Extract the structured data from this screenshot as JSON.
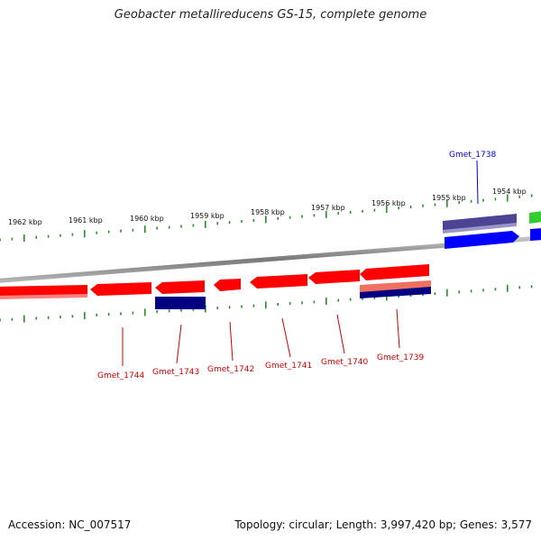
{
  "title": "Geobacter metallireducens GS-15, complete genome",
  "footer": {
    "accession": "Accession: NC_007517",
    "summary": "Topology: circular; Length: 3,997,420 bp; Genes: 3,577"
  },
  "scale_labels": [
    "1962 kbp",
    "1961 kbp",
    "1960 kbp",
    "1959 kbp",
    "1958 kbp",
    "1957 kbp",
    "1956 kbp",
    "1955 kbp",
    "1954 kbp"
  ],
  "genes": [
    {
      "id": "g1744",
      "label": "Gmet_1744"
    },
    {
      "id": "g1743",
      "label": "Gmet_1743"
    },
    {
      "id": "g1742",
      "label": "Gmet_1742"
    },
    {
      "id": "g1741",
      "label": "Gmet_1741"
    },
    {
      "id": "g1740",
      "label": "Gmet_1740"
    },
    {
      "id": "g1739",
      "label": "Gmet_1739"
    },
    {
      "id": "g1738",
      "label": "Gmet_1738"
    }
  ],
  "colors": {
    "cds_reverse": "#ff0000",
    "cds_forward": "#0000ff",
    "cds_dark": "#000080",
    "cds_purple": "#4b4593",
    "cds_green": "#33cc33",
    "cds_salmon": "#f07060",
    "tick": "#2d8a2d",
    "backbone": "#8a8a8a",
    "label_reverse": "#cc0000",
    "label_forward": "#0000cc"
  }
}
